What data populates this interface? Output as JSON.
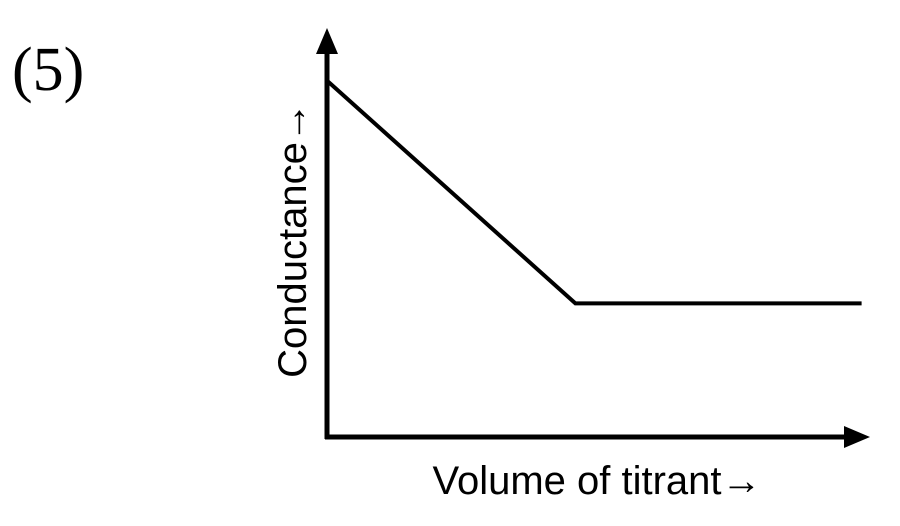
{
  "chart_data": {
    "type": "line",
    "label": "(5)",
    "x_label": "Volume of titrant→",
    "y_label": "Conductance→",
    "x": [
      0,
      46,
      99
    ],
    "values": [
      88,
      33,
      33
    ],
    "color": "#000000",
    "xlim": [
      0,
      100
    ],
    "ylim": [
      0,
      100
    ]
  }
}
